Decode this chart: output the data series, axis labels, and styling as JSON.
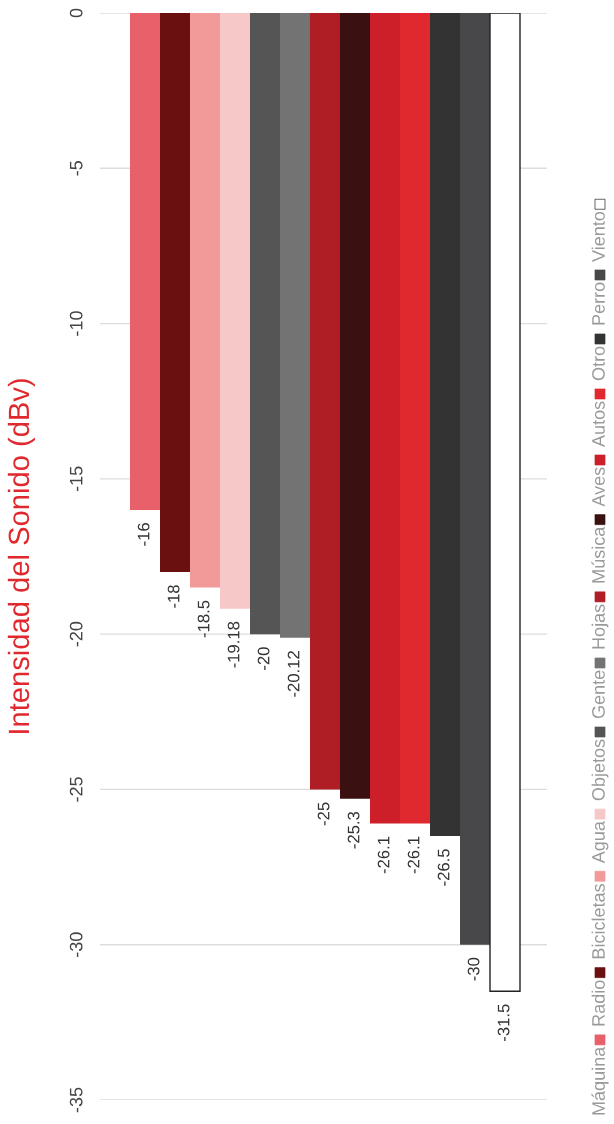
{
  "chart_data": {
    "type": "bar",
    "ylabel": "Intensidad del Sonido (dBv)",
    "categories": [
      null
    ],
    "series": [
      {
        "name": "Máquina",
        "color": "#e8606a",
        "values": [
          -16
        ]
      },
      {
        "name": "Radio",
        "color": "#6b1010",
        "values": [
          -18
        ]
      },
      {
        "name": "Bicicletas",
        "color": "#f29a9a",
        "values": [
          -18.5
        ]
      },
      {
        "name": "Agua",
        "color": "#f7c8c8",
        "values": [
          -19.18
        ]
      },
      {
        "name": "Objetos",
        "color": "#555555",
        "values": [
          -20
        ]
      },
      {
        "name": "Gente",
        "color": "#737373",
        "values": [
          -20.12
        ]
      },
      {
        "name": "Hojas",
        "color": "#b01e25",
        "values": [
          -25
        ]
      },
      {
        "name": "Música",
        "color": "#3a1010",
        "values": [
          -25.3
        ]
      },
      {
        "name": "Aves",
        "color": "#cc1f29",
        "values": [
          -26.1
        ]
      },
      {
        "name": "Autos",
        "color": "#e0292e",
        "values": [
          -26.1
        ]
      },
      {
        "name": "Otro",
        "color": "#333333",
        "values": [
          -26.5
        ]
      },
      {
        "name": "Perro",
        "color": "#48484a",
        "values": [
          -30
        ]
      },
      {
        "name": "Viento",
        "color": "#ffffff",
        "values": [
          -31.5
        ]
      }
    ],
    "ylim": [
      -35,
      0
    ],
    "yticks": [
      0,
      -5,
      -10,
      -15,
      -20,
      -25,
      -30,
      -35
    ],
    "grid": "y",
    "legend": "right",
    "data_labels": true
  }
}
